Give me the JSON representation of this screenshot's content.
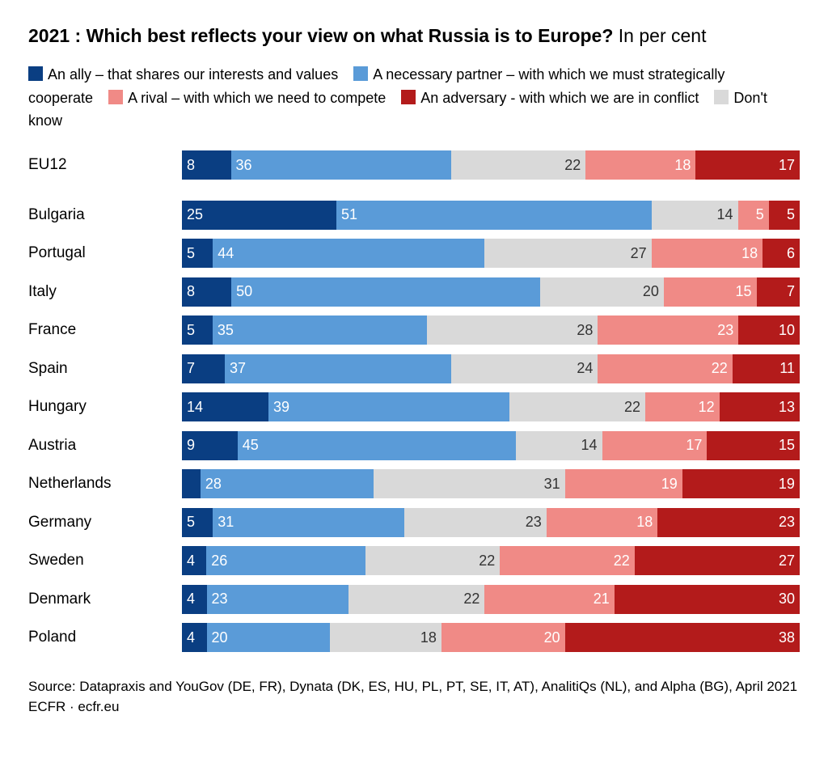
{
  "title_bold": "2021 : Which best reflects your view on what Russia is to Europe?",
  "title_light": "In per cent",
  "legend": [
    {
      "label": "An ally – that shares our interests and values",
      "color": "#0a3e82"
    },
    {
      "label": "A necessary partner – with which we must strategically cooperate",
      "color": "#5a9bd8"
    },
    {
      "label": "A rival – with which we need to compete",
      "color": "#f08a86"
    },
    {
      "label": "An adversary - with which we are in conflict",
      "color": "#b31b1b"
    },
    {
      "label": "Don't know",
      "color": "#d9d9d9"
    }
  ],
  "segment_order": [
    "ally",
    "partner",
    "dontknow",
    "rival",
    "adversary"
  ],
  "segment_colors": {
    "ally": {
      "bg": "#0a3e82",
      "fg": "#ffffff",
      "align": "left"
    },
    "partner": {
      "bg": "#5a9bd8",
      "fg": "#ffffff",
      "align": "left"
    },
    "dontknow": {
      "bg": "#d9d9d9",
      "fg": "#333333",
      "align": "right"
    },
    "rival": {
      "bg": "#f08a86",
      "fg": "#ffffff",
      "align": "right"
    },
    "adversary": {
      "bg": "#b31b1b",
      "fg": "#ffffff",
      "align": "right"
    }
  },
  "rows": [
    {
      "name": "EU12",
      "ally": 8,
      "partner": 36,
      "dontknow": 22,
      "rival": 18,
      "adversary": 17,
      "gap_after": true,
      "hide": []
    },
    {
      "name": "Bulgaria",
      "ally": 25,
      "partner": 51,
      "dontknow": 14,
      "rival": 5,
      "adversary": 5,
      "hide": []
    },
    {
      "name": "Portugal",
      "ally": 5,
      "partner": 44,
      "dontknow": 27,
      "rival": 18,
      "adversary": 6,
      "hide": []
    },
    {
      "name": "Italy",
      "ally": 8,
      "partner": 50,
      "dontknow": 20,
      "rival": 15,
      "adversary": 7,
      "hide": []
    },
    {
      "name": "France",
      "ally": 5,
      "partner": 35,
      "dontknow": 28,
      "rival": 23,
      "adversary": 10,
      "hide": [
        "rival_minus"
      ]
    },
    {
      "name": "Spain",
      "ally": 7,
      "partner": 37,
      "dontknow": 24,
      "rival": 22,
      "adversary": 11,
      "hide": []
    },
    {
      "name": "Hungary",
      "ally": 14,
      "partner": 39,
      "dontknow": 22,
      "rival": 12,
      "adversary": 13,
      "hide": []
    },
    {
      "name": "Austria",
      "ally": 9,
      "partner": 45,
      "dontknow": 14,
      "rival": 17,
      "adversary": 15,
      "hide": []
    },
    {
      "name": "Netherlands",
      "ally": 3,
      "partner": 28,
      "dontknow": 31,
      "rival": 19,
      "adversary": 19,
      "hide": [
        "ally"
      ]
    },
    {
      "name": "Germany",
      "ally": 5,
      "partner": 31,
      "dontknow": 23,
      "rival": 18,
      "adversary": 23,
      "hide": []
    },
    {
      "name": "Sweden",
      "ally": 4,
      "partner": 26,
      "dontknow": 22,
      "rival": 22,
      "adversary": 27,
      "hide": [
        "rival_minus"
      ]
    },
    {
      "name": "Denmark",
      "ally": 4,
      "partner": 23,
      "dontknow": 22,
      "rival": 21,
      "adversary": 30,
      "hide": []
    },
    {
      "name": "Poland",
      "ally": 4,
      "partner": 20,
      "dontknow": 18,
      "rival": 20,
      "adversary": 38,
      "hide": []
    }
  ],
  "source_line1": "Source: Datapraxis and YouGov (DE, FR), Dynata (DK, ES, HU, PL, PT, SE, IT, AT), AnalitiQs (NL), and Alpha (BG), April 2021",
  "source_line2": "ECFR · ecfr.eu",
  "min_label_threshold": 3
}
